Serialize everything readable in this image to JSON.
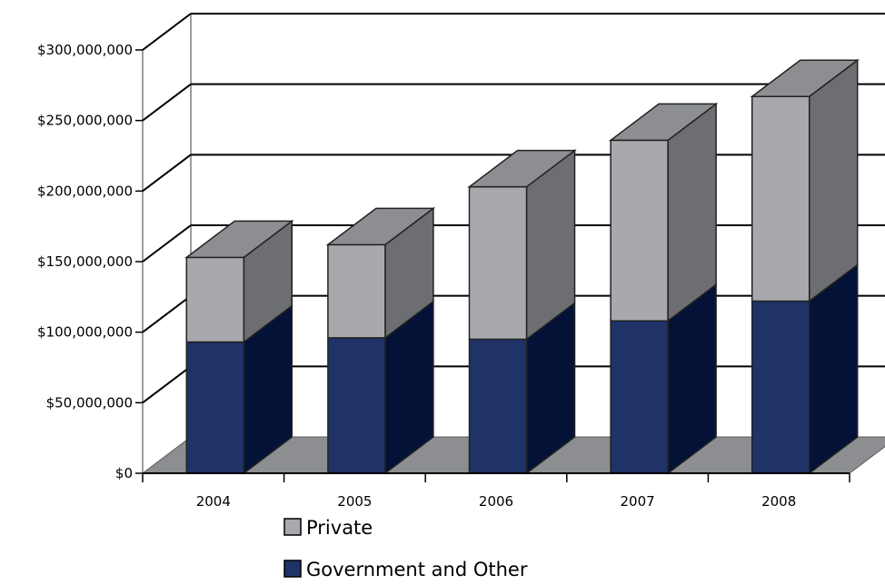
{
  "chart_data": {
    "type": "bar",
    "stacked": true,
    "three_d": true,
    "title": "",
    "xlabel": "",
    "ylabel": "",
    "categories": [
      "2004",
      "2005",
      "2006",
      "2007",
      "2008"
    ],
    "series": [
      {
        "name": "Government and Other",
        "values": [
          93000000,
          96000000,
          95000000,
          108000000,
          122000000
        ],
        "color": "#1f3368",
        "side_color": "#041237"
      },
      {
        "name": "Private",
        "values": [
          60000000,
          66000000,
          108000000,
          128000000,
          145000000
        ],
        "color": "#a7a9ac",
        "side_color": "#6d6e71"
      }
    ],
    "ylim": [
      0,
      300000000
    ],
    "yticks": [
      0,
      50000000,
      100000000,
      150000000,
      200000000,
      250000000,
      300000000
    ],
    "ytick_labels": [
      "$0",
      "$50,000,000",
      "$100,000,000",
      "$150,000,000",
      "$200,000,000",
      "$250,000,000",
      "$300,000,000"
    ],
    "grid": true,
    "legend_position": "bottom",
    "legend_order": [
      "Private",
      "Government and Other"
    ],
    "colors": {
      "top": "#8c8e91",
      "floor": "#8c8e91",
      "wall_line": "#9d9d9d"
    }
  }
}
